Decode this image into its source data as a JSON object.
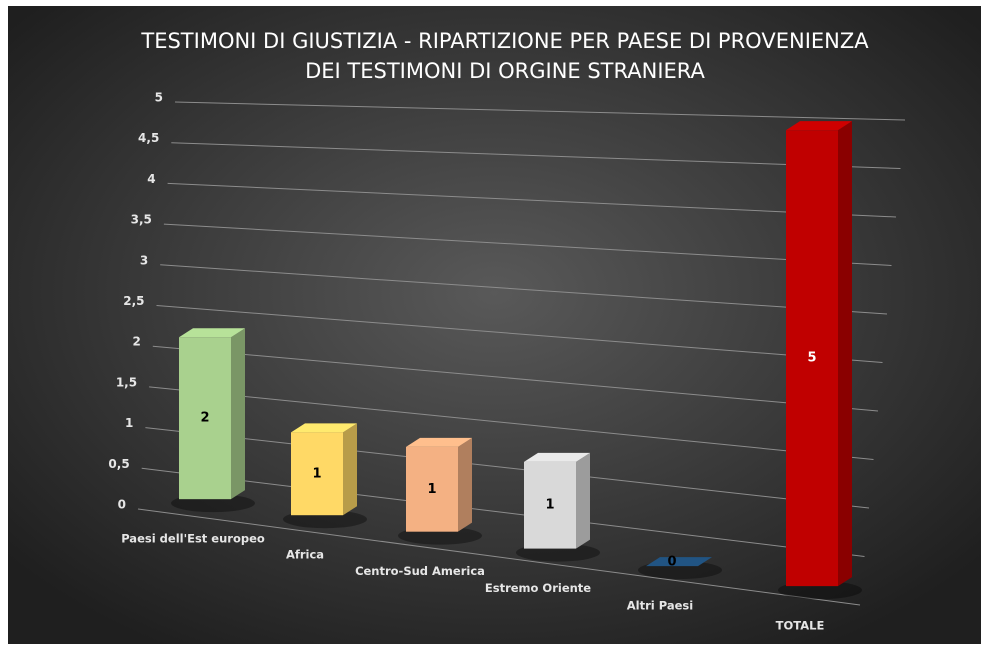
{
  "chart_data": {
    "type": "bar3d",
    "title": [
      "TESTIMONI DI GIUSTIZIA - RIPARTIZIONE PER PAESE DI PROVENIENZA",
      "DEI TESTIMONI DI ORGINE STRANIERA"
    ],
    "categories": [
      "Paesi dell'Est europeo",
      "Africa",
      "Centro-Sud America",
      "Estremo Oriente",
      "Altri Paesi",
      "TOTALE"
    ],
    "values": [
      2,
      1,
      1,
      1,
      0,
      5
    ],
    "colors": [
      "#a9d18e",
      "#ffd966",
      "#f4b183",
      "#d9d9d9",
      "#1f4e79",
      "#c00000"
    ],
    "ylim": [
      0,
      5
    ],
    "yticks": [
      0,
      {
        "value": 0.5,
        "label": "0,5"
      },
      1,
      {
        "value": 1.5,
        "label": "1,5"
      },
      2,
      {
        "value": 2.5,
        "label": "2,5"
      },
      3,
      {
        "value": 3.5,
        "label": "3,5"
      },
      4,
      {
        "value": 4.5,
        "label": "4,5"
      },
      5
    ],
    "grid": true
  }
}
